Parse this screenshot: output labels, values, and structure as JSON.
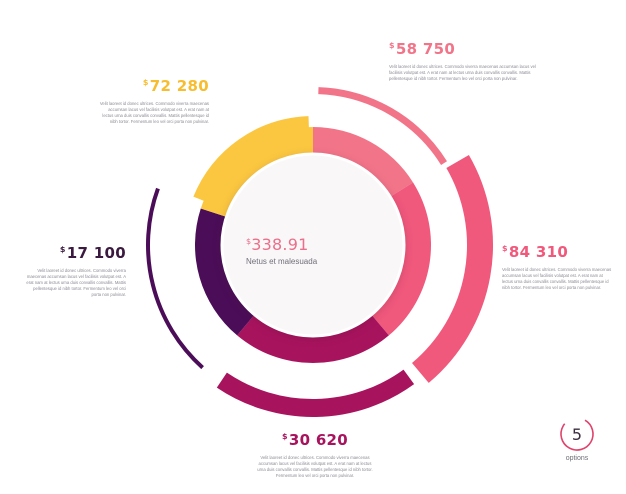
{
  "chart_data": {
    "type": "pie",
    "title": "",
    "center": {
      "value": "338.91",
      "currency": "$",
      "label": "Netus et malesuada"
    },
    "series": [
      {
        "value": "58 750",
        "currency": "$",
        "color": "#f27489",
        "desc": "Velit laoreet id donec ultrices. Commodo viverra maecenas accumsan lacus vel facilisis volutpat est. A erat nam at lectus urna duis convallis convallis. Mattis pellentesque id nibh tortor. Fermentum leo vel orci porta non pulvinar."
      },
      {
        "value": "84 310",
        "currency": "$",
        "color": "#f0587c",
        "desc": "Velit laoreet id donec ultrices. Commodo viverra maecenas accumsan lacus vel facilisis volutpat est. A erat nam at lectus urna duis convallis convallis. Mattis pellentesque id nibh tortor. Fermentum leo vel orci porta non pulvinar."
      },
      {
        "value": "30 620",
        "currency": "$",
        "color": "#a8135e",
        "desc": "Velit laoreet id donec ultrices. Commodo viverra maecenas accumsan lacus vel facilisis volutpat est. A erat nam at lectus urna duis convallis convallis. Mattis pellentesque id nibh tortor. Fermentum leo vel orci porta non pulvinar."
      },
      {
        "value": "17 100",
        "currency": "$",
        "color": "#4b0d58",
        "desc": "Velit laoreet id donec ultrices. Commodo viverra maecenas accumsan lacus vel facilisis volutpat est. A erat nam at lectus urna duis convallis convallis. Mattis pellentesque id nibh tortor. Fermentum leo vel orci porta non pulvinar."
      },
      {
        "value": "72 280",
        "currency": "$",
        "color": "#fbc740",
        "desc": "Velit laoreet id donec ultrices. Commodo viverra maecenas accumsan lacus vel facilisis volutpat est. A erat nam at lectus urna duis convallis convallis. Mattis pellentesque id nibh tortor. Fermentum leo vel orci porta non pulvinar."
      }
    ]
  },
  "badge": {
    "count": "5",
    "label": "options",
    "color": "#e0426b"
  }
}
